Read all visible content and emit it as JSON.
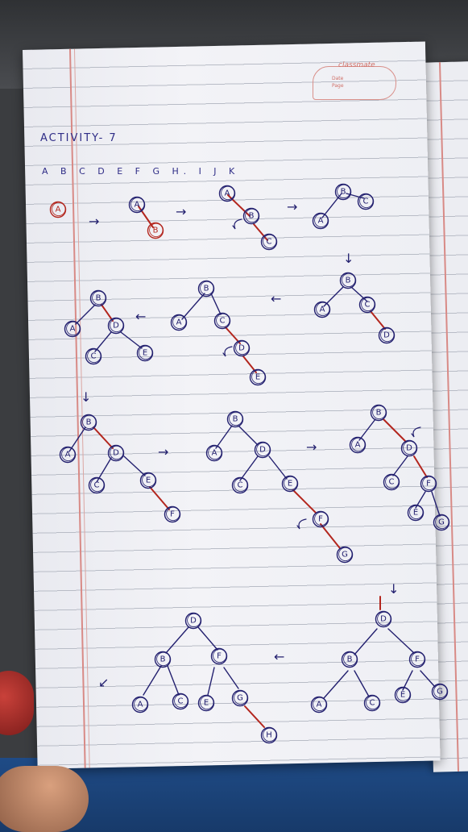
{
  "notebook": {
    "brand": "classmate",
    "date_label": "Date",
    "page_label": "Page"
  },
  "activity": {
    "title": "ACTIVITY- 7",
    "sequence": "A B C D E F G H. I J K"
  },
  "colors": {
    "ink_blue": "#23206f",
    "ink_red": "#b3261e",
    "paper": "#f1f1f5",
    "rule_line": "#b8bcc6",
    "margin_line": "#d88a86"
  },
  "nodes": {
    "a": "A",
    "b": "B",
    "c": "C",
    "d": "D",
    "e": "E",
    "f": "F",
    "g": "G",
    "h": "H"
  },
  "arrows": {
    "right": "→",
    "left": "←",
    "down": "↓",
    "up": "↑",
    "down_left": "↙"
  }
}
